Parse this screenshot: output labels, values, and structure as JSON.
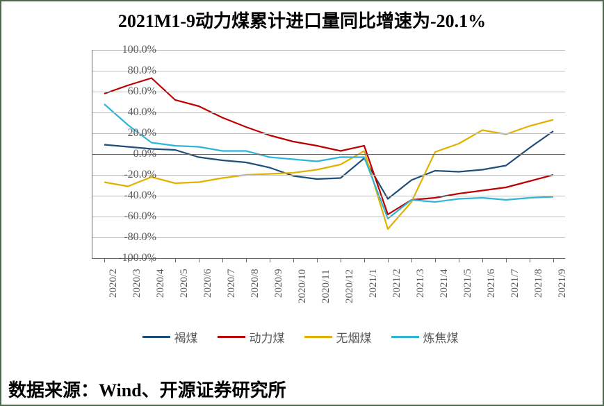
{
  "title": "2021M1-9动力煤累计进口量同比增速为-20.1%",
  "source": "数据来源：Wind、开源证券研究所",
  "chart": {
    "type": "line",
    "background_color": "#ffffff",
    "grid_color": "#bfbfbf",
    "axis_color": "#666666",
    "tick_label_color": "#595959",
    "tick_fontsize": 16,
    "title_fontsize": 26,
    "ylim": [
      -100,
      100
    ],
    "ytick_step": 20,
    "ytick_format_suffix": "%",
    "yticks": [
      -100,
      -80,
      -60,
      -40,
      -20,
      0,
      20,
      40,
      60,
      80,
      100
    ],
    "categories": [
      "2020/2",
      "2020/3",
      "2020/4",
      "2020/5",
      "2020/6",
      "2020/7",
      "2020/8",
      "2020/9",
      "2020/10",
      "2020/11",
      "2020/12",
      "2021/1",
      "2021/2",
      "2021/3",
      "2021/4",
      "2021/5",
      "2021/6",
      "2021/7",
      "2021/8",
      "2021/9"
    ],
    "series": [
      {
        "name": "褐煤",
        "color": "#1f4e79",
        "line_width": 2.2,
        "values": [
          9,
          7,
          5,
          4,
          -3,
          -6,
          -8,
          -13,
          -21,
          -24,
          -23,
          -4,
          -43,
          -25,
          -16,
          -17,
          -15,
          -11,
          6,
          22
        ]
      },
      {
        "name": "动力煤",
        "color": "#c00000",
        "line_width": 2.2,
        "values": [
          58,
          66,
          73,
          52,
          46,
          35,
          26,
          18,
          12,
          8,
          3,
          8,
          -58,
          -44,
          -42,
          -38,
          -35,
          -32,
          -26,
          -20
        ]
      },
      {
        "name": "无烟煤",
        "color": "#e2b100",
        "line_width": 2.2,
        "values": [
          -27,
          -31,
          -22,
          -28,
          -27,
          -23,
          -20,
          -19,
          -18,
          -15,
          -10,
          3,
          -72,
          -46,
          2,
          10,
          23,
          19,
          27,
          33
        ]
      },
      {
        "name": "炼焦煤",
        "color": "#2fb5d6",
        "line_width": 2.2,
        "values": [
          48,
          28,
          11,
          8,
          7,
          3,
          3,
          -3,
          -5,
          -7,
          -3,
          -3,
          -62,
          -44,
          -46,
          -43,
          -42,
          -44,
          -42,
          -41
        ]
      }
    ],
    "legend": {
      "position": "bottom"
    }
  }
}
